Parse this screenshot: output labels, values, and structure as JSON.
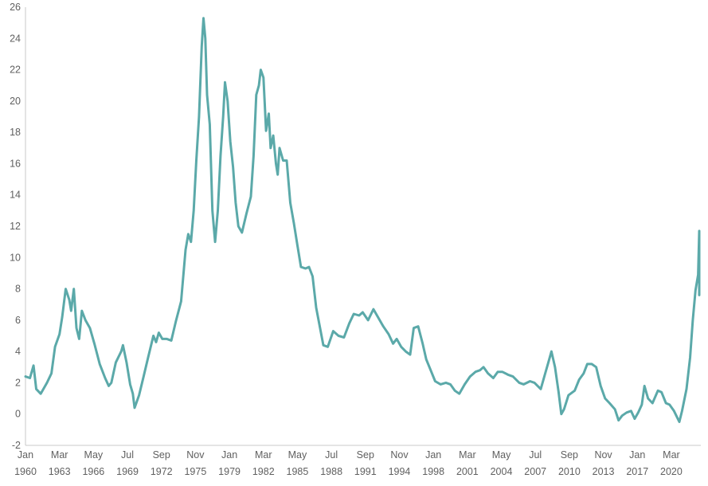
{
  "chart_data": {
    "type": "line",
    "title": "",
    "xlabel": "",
    "ylabel": "",
    "ylim": [
      -2,
      26
    ],
    "yticks": [
      -2,
      0,
      2,
      4,
      6,
      8,
      10,
      12,
      14,
      16,
      18,
      20,
      22,
      24,
      26
    ],
    "xlim": [
      "1960-01",
      "2022-12"
    ],
    "xticks": [
      {
        "month": "Jan",
        "year": "1960",
        "date": "1960-01"
      },
      {
        "month": "Mar",
        "year": "1963",
        "date": "1963-03"
      },
      {
        "month": "May",
        "year": "1966",
        "date": "1966-05"
      },
      {
        "month": "Jul",
        "year": "1969",
        "date": "1969-07"
      },
      {
        "month": "Sep",
        "year": "1972",
        "date": "1972-09"
      },
      {
        "month": "Nov",
        "year": "1975",
        "date": "1975-11"
      },
      {
        "month": "Jan",
        "year": "1979",
        "date": "1979-01"
      },
      {
        "month": "Mar",
        "year": "1982",
        "date": "1982-03"
      },
      {
        "month": "May",
        "year": "1985",
        "date": "1985-05"
      },
      {
        "month": "Jul",
        "year": "1988",
        "date": "1988-07"
      },
      {
        "month": "Sep",
        "year": "1991",
        "date": "1991-09"
      },
      {
        "month": "Nov",
        "year": "1994",
        "date": "1994-11"
      },
      {
        "month": "Jan",
        "year": "1998",
        "date": "1998-01"
      },
      {
        "month": "Mar",
        "year": "2001",
        "date": "2001-03"
      },
      {
        "month": "May",
        "year": "2004",
        "date": "2004-05"
      },
      {
        "month": "Jul",
        "year": "2007",
        "date": "2007-07"
      },
      {
        "month": "Sep",
        "year": "2010",
        "date": "2010-09"
      },
      {
        "month": "Nov",
        "year": "2013",
        "date": "2013-11"
      },
      {
        "month": "Jan",
        "year": "2017",
        "date": "2017-01"
      },
      {
        "month": "Mar",
        "year": "2020",
        "date": "2020-03"
      }
    ],
    "grid": false,
    "legend": "none",
    "colors": {
      "series": "#5ba9a9",
      "axis": "#c8c8c8",
      "text": "#606060"
    },
    "series": [
      {
        "points": [
          [
            "1960-01",
            2.4
          ],
          [
            "1960-06",
            2.3
          ],
          [
            "1960-10",
            3.1
          ],
          [
            "1961-01",
            1.6
          ],
          [
            "1961-06",
            1.3
          ],
          [
            "1962-01",
            2.0
          ],
          [
            "1962-06",
            2.6
          ],
          [
            "1962-10",
            4.3
          ],
          [
            "1963-03",
            5.1
          ],
          [
            "1963-06",
            6.2
          ],
          [
            "1963-10",
            8.0
          ],
          [
            "1964-02",
            7.3
          ],
          [
            "1964-04",
            6.6
          ],
          [
            "1964-07",
            8.0
          ],
          [
            "1964-10",
            5.5
          ],
          [
            "1965-01",
            4.8
          ],
          [
            "1965-04",
            6.6
          ],
          [
            "1965-08",
            6.0
          ],
          [
            "1966-01",
            5.5
          ],
          [
            "1966-06",
            4.5
          ],
          [
            "1966-12",
            3.2
          ],
          [
            "1967-06",
            2.3
          ],
          [
            "1967-10",
            1.8
          ],
          [
            "1968-01",
            2.0
          ],
          [
            "1968-06",
            3.3
          ],
          [
            "1968-12",
            4.0
          ],
          [
            "1969-02",
            4.4
          ],
          [
            "1969-06",
            3.3
          ],
          [
            "1969-10",
            1.9
          ],
          [
            "1970-01",
            1.3
          ],
          [
            "1970-03",
            0.4
          ],
          [
            "1970-08",
            1.2
          ],
          [
            "1971-01",
            2.4
          ],
          [
            "1971-06",
            3.6
          ],
          [
            "1971-12",
            5.0
          ],
          [
            "1972-03",
            4.6
          ],
          [
            "1972-06",
            5.2
          ],
          [
            "1972-10",
            4.8
          ],
          [
            "1973-03",
            4.8
          ],
          [
            "1973-08",
            4.7
          ],
          [
            "1974-01",
            5.9
          ],
          [
            "1974-07",
            7.2
          ],
          [
            "1974-12",
            10.5
          ],
          [
            "1975-03",
            11.5
          ],
          [
            "1975-06",
            11.0
          ],
          [
            "1975-09",
            13.0
          ],
          [
            "1975-12",
            16.2
          ],
          [
            "1976-03",
            19.0
          ],
          [
            "1976-06",
            23.5
          ],
          [
            "1976-08",
            25.3
          ],
          [
            "1976-10",
            24.0
          ],
          [
            "1976-12",
            20.4
          ],
          [
            "1977-03",
            18.5
          ],
          [
            "1977-06",
            13.0
          ],
          [
            "1977-09",
            11.0
          ],
          [
            "1977-12",
            13.0
          ],
          [
            "1978-03",
            16.5
          ],
          [
            "1978-06",
            19.0
          ],
          [
            "1978-08",
            21.2
          ],
          [
            "1978-11",
            20.0
          ],
          [
            "1979-02",
            17.4
          ],
          [
            "1979-05",
            15.8
          ],
          [
            "1979-08",
            13.5
          ],
          [
            "1979-11",
            12.0
          ],
          [
            "1980-03",
            11.6
          ],
          [
            "1980-08",
            12.8
          ],
          [
            "1981-01",
            13.9
          ],
          [
            "1981-04",
            16.5
          ],
          [
            "1981-07",
            20.4
          ],
          [
            "1981-10",
            21.0
          ],
          [
            "1981-12",
            22.0
          ],
          [
            "1982-03",
            21.5
          ],
          [
            "1982-06",
            18.1
          ],
          [
            "1982-09",
            19.2
          ],
          [
            "1982-11",
            17.0
          ],
          [
            "1983-02",
            17.8
          ],
          [
            "1983-05",
            16.0
          ],
          [
            "1983-07",
            15.3
          ],
          [
            "1983-09",
            17.0
          ],
          [
            "1984-01",
            16.2
          ],
          [
            "1984-05",
            16.2
          ],
          [
            "1984-09",
            13.5
          ],
          [
            "1985-01",
            12.2
          ],
          [
            "1985-05",
            10.8
          ],
          [
            "1985-09",
            9.4
          ],
          [
            "1986-02",
            9.3
          ],
          [
            "1986-06",
            9.4
          ],
          [
            "1986-10",
            8.8
          ],
          [
            "1987-02",
            6.8
          ],
          [
            "1987-06",
            5.6
          ],
          [
            "1987-10",
            4.4
          ],
          [
            "1988-03",
            4.3
          ],
          [
            "1988-09",
            5.3
          ],
          [
            "1989-03",
            5.0
          ],
          [
            "1989-09",
            4.9
          ],
          [
            "1990-03",
            5.8
          ],
          [
            "1990-08",
            6.4
          ],
          [
            "1991-02",
            6.3
          ],
          [
            "1991-06",
            6.5
          ],
          [
            "1991-12",
            6.0
          ],
          [
            "1992-06",
            6.7
          ],
          [
            "1992-11",
            6.2
          ],
          [
            "1993-05",
            5.6
          ],
          [
            "1993-11",
            5.1
          ],
          [
            "1994-04",
            4.5
          ],
          [
            "1994-08",
            4.8
          ],
          [
            "1995-01",
            4.3
          ],
          [
            "1995-06",
            4.0
          ],
          [
            "1995-11",
            3.8
          ],
          [
            "1996-03",
            5.5
          ],
          [
            "1996-08",
            5.6
          ],
          [
            "1997-01",
            4.5
          ],
          [
            "1997-05",
            3.5
          ],
          [
            "1997-10",
            2.8
          ],
          [
            "1998-03",
            2.1
          ],
          [
            "1998-09",
            1.9
          ],
          [
            "1999-03",
            2.0
          ],
          [
            "1999-08",
            1.9
          ],
          [
            "2000-01",
            1.5
          ],
          [
            "2000-06",
            1.3
          ],
          [
            "2000-12",
            1.9
          ],
          [
            "2001-06",
            2.4
          ],
          [
            "2001-12",
            2.7
          ],
          [
            "2002-05",
            2.8
          ],
          [
            "2002-09",
            3.0
          ],
          [
            "2003-02",
            2.6
          ],
          [
            "2003-08",
            2.3
          ],
          [
            "2004-01",
            2.7
          ],
          [
            "2004-06",
            2.7
          ],
          [
            "2005-01",
            2.5
          ],
          [
            "2005-06",
            2.4
          ],
          [
            "2006-01",
            2.0
          ],
          [
            "2006-06",
            1.9
          ],
          [
            "2007-01",
            2.1
          ],
          [
            "2007-06",
            2.0
          ],
          [
            "2008-01",
            1.6
          ],
          [
            "2008-06",
            2.6
          ],
          [
            "2008-10",
            3.4
          ],
          [
            "2009-01",
            4.0
          ],
          [
            "2009-05",
            3.0
          ],
          [
            "2009-09",
            1.4
          ],
          [
            "2009-12",
            0.0
          ],
          [
            "2010-03",
            0.3
          ],
          [
            "2010-08",
            1.2
          ],
          [
            "2011-03",
            1.5
          ],
          [
            "2011-08",
            2.2
          ],
          [
            "2012-01",
            2.6
          ],
          [
            "2012-05",
            3.2
          ],
          [
            "2012-10",
            3.2
          ],
          [
            "2013-03",
            3.0
          ],
          [
            "2013-08",
            1.8
          ],
          [
            "2014-01",
            1.0
          ],
          [
            "2014-06",
            0.7
          ],
          [
            "2014-12",
            0.3
          ],
          [
            "2015-04",
            -0.4
          ],
          [
            "2015-08",
            -0.1
          ],
          [
            "2016-01",
            0.1
          ],
          [
            "2016-06",
            0.2
          ],
          [
            "2016-10",
            -0.3
          ],
          [
            "2017-02",
            0.1
          ],
          [
            "2017-06",
            0.6
          ],
          [
            "2017-09",
            1.8
          ],
          [
            "2018-01",
            1.0
          ],
          [
            "2018-06",
            0.7
          ],
          [
            "2018-12",
            1.5
          ],
          [
            "2019-04",
            1.4
          ],
          [
            "2019-09",
            0.7
          ],
          [
            "2020-01",
            0.6
          ],
          [
            "2020-06",
            0.2
          ],
          [
            "2020-12",
            -0.5
          ],
          [
            "2021-03",
            0.2
          ],
          [
            "2021-08",
            1.6
          ],
          [
            "2021-12",
            3.6
          ],
          [
            "2022-03",
            6.0
          ],
          [
            "2022-06",
            7.9
          ],
          [
            "2022-09",
            8.9
          ],
          [
            "2022-11",
            11.7
          ],
          [
            "2023-01",
            11.5
          ],
          [
            "2023-04",
            8.8
          ],
          [
            "2023-06",
            7.6
          ]
        ]
      }
    ]
  }
}
